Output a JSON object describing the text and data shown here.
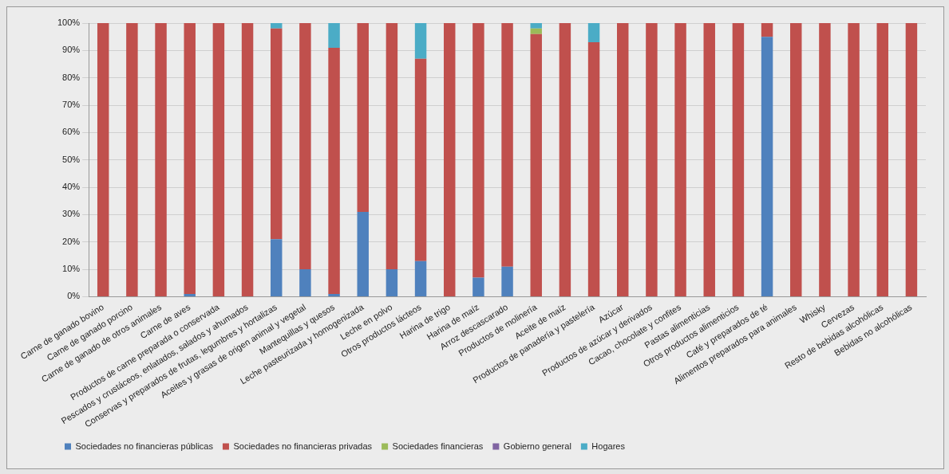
{
  "chart_data": {
    "type": "bar",
    "stacked": true,
    "grid": "y",
    "legend": "bottom",
    "categories": [
      "Carne de ganado bovino",
      "Carne de ganado porcino",
      "Carne de ganado de otros animales",
      "Carne de aves",
      "Productos de carne preparada o conservada",
      "Pescados y crustáceos, enlatados, salados y ahumados",
      "Conservas y preparados de frutas, legumbres y hortalizas",
      "Aceites y grasas de origen animal y vegetal",
      "Mantequillas y quesos",
      "Leche pasteurizada y homogenizada",
      "Leche en polvo",
      "Otros productos lácteos",
      "Harina de trigo",
      "Harina de maíz",
      "Arroz descascarado",
      "Productos de molinería",
      "Aceite de maíz",
      "Productos de panadería y pastelería",
      "Azúcar",
      "Productos de azúcar y derivados",
      "Cacao, chocolate y confites",
      "Pastas alimenticias",
      "Otros productos alimenticios",
      "Café y preparados de té",
      "Alimentos preparados para animales",
      "Whisky",
      "Cervezas",
      "Resto de bebidas alcohólicas",
      "Bebidas no alcohólicas"
    ],
    "ylim": [
      0,
      100
    ],
    "yticks": [
      {
        "value": 0,
        "label": "0%"
      },
      {
        "value": 10,
        "label": "10%"
      },
      {
        "value": 20,
        "label": "20%"
      },
      {
        "value": 30,
        "label": "30%"
      },
      {
        "value": 40,
        "label": "40%"
      },
      {
        "value": 50,
        "label": "50%"
      },
      {
        "value": 60,
        "label": "60%"
      },
      {
        "value": 70,
        "label": "70%"
      },
      {
        "value": 80,
        "label": "80%"
      },
      {
        "value": 90,
        "label": "90%"
      },
      {
        "value": 100,
        "label": "100%"
      }
    ],
    "series": [
      {
        "name": "Sociedades no financieras públicas",
        "color": "#4f81bd",
        "values": [
          0,
          0,
          0,
          1,
          0,
          0,
          21,
          10,
          1,
          31,
          10,
          13,
          0,
          7,
          11,
          0,
          0,
          0,
          0,
          0,
          0,
          0,
          0,
          95,
          0,
          0,
          0,
          0,
          0
        ]
      },
      {
        "name": "Sociedades no financieras privadas",
        "color": "#c0504d",
        "values": [
          100,
          100,
          100,
          99,
          100,
          100,
          77,
          90,
          90,
          69,
          90,
          74,
          100,
          93,
          89,
          96,
          100,
          93,
          100,
          100,
          100,
          100,
          100,
          5,
          100,
          100,
          100,
          100,
          100
        ]
      },
      {
        "name": "Sociedades financieras",
        "color": "#9bbb59",
        "values": [
          0,
          0,
          0,
          0,
          0,
          0,
          0,
          0,
          0,
          0,
          0,
          0,
          0,
          0,
          0,
          2,
          0,
          0,
          0,
          0,
          0,
          0,
          0,
          0,
          0,
          0,
          0,
          0,
          0
        ]
      },
      {
        "name": "Gobierno general",
        "color": "#8064a2",
        "values": [
          0,
          0,
          0,
          0,
          0,
          0,
          0,
          0,
          0,
          0,
          0,
          0,
          0,
          0,
          0,
          0,
          0,
          0,
          0,
          0,
          0,
          0,
          0,
          0,
          0,
          0,
          0,
          0,
          0
        ]
      },
      {
        "name": "Hogares",
        "color": "#4bacc6",
        "values": [
          0,
          0,
          0,
          0,
          0,
          0,
          2,
          0,
          9,
          0,
          0,
          13,
          0,
          0,
          0,
          2,
          0,
          7,
          0,
          0,
          0,
          0,
          0,
          0,
          0,
          0,
          0,
          0,
          0
        ]
      }
    ]
  }
}
